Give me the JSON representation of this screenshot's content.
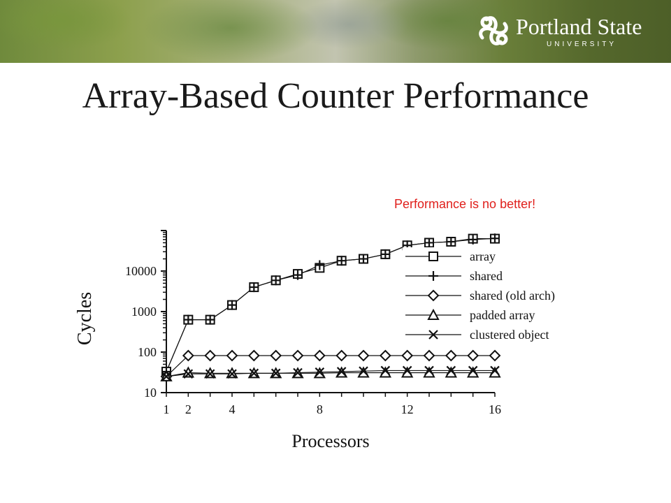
{
  "header": {
    "logo_name": "Portland State",
    "logo_sub": "UNIVERSITY",
    "logo_icon": "psu-knot-icon"
  },
  "slide": {
    "title": "Array-Based Counter Performance",
    "callout": "Performance is no better!",
    "callout_color": "#e0201c"
  },
  "chart_data": {
    "type": "line",
    "title": "",
    "xlabel": "Processors",
    "ylabel": "Cycles",
    "xlim": [
      1,
      16
    ],
    "ylim": [
      10,
      100000
    ],
    "yscale": "log",
    "x_ticks": [
      1,
      2,
      4,
      8,
      12,
      16
    ],
    "y_ticks": [
      10,
      100,
      1000,
      10000
    ],
    "y_tick_labels": [
      "10",
      "100",
      "1000",
      "10000"
    ],
    "legend_position": "right",
    "series": [
      {
        "name": "array",
        "marker": "square",
        "x": [
          1,
          2,
          3,
          4,
          5,
          6,
          7,
          8,
          9,
          10,
          11,
          12,
          13,
          14,
          15,
          16
        ],
        "y": [
          33,
          630,
          630,
          1450,
          4000,
          5900,
          8500,
          12000,
          18000,
          20000,
          26000,
          43000,
          50000,
          53000,
          63000,
          63000
        ]
      },
      {
        "name": "shared",
        "marker": "plus",
        "x": [
          1,
          2,
          3,
          4,
          5,
          6,
          7,
          8,
          9,
          10,
          11,
          12,
          13,
          14,
          15,
          16
        ],
        "y": [
          33,
          630,
          630,
          1450,
          4000,
          5900,
          8000,
          14000,
          18000,
          20000,
          26000,
          43000,
          50000,
          53000,
          60000,
          64000
        ]
      },
      {
        "name": "shared (old arch)",
        "marker": "diamond",
        "x": [
          1,
          2,
          3,
          4,
          5,
          6,
          7,
          8,
          9,
          10,
          11,
          12,
          13,
          14,
          15,
          16
        ],
        "y": [
          25,
          82,
          82,
          82,
          82,
          82,
          82,
          82,
          82,
          82,
          82,
          82,
          82,
          82,
          82,
          82
        ]
      },
      {
        "name": "padded array",
        "marker": "triangle",
        "x": [
          1,
          2,
          3,
          4,
          5,
          6,
          7,
          8,
          9,
          10,
          11,
          12,
          13,
          14,
          15,
          16
        ],
        "y": [
          25,
          31,
          30,
          30,
          30,
          30,
          30,
          30,
          31,
          31,
          31,
          31,
          31,
          31,
          31,
          31
        ]
      },
      {
        "name": "clustered object",
        "marker": "x",
        "x": [
          1,
          2,
          3,
          4,
          5,
          6,
          7,
          8,
          9,
          10,
          11,
          12,
          13,
          14,
          15,
          16
        ],
        "y": [
          25,
          29,
          29,
          29,
          30,
          30,
          31,
          32,
          33,
          34,
          35,
          35,
          35,
          35,
          35,
          35
        ]
      }
    ]
  }
}
